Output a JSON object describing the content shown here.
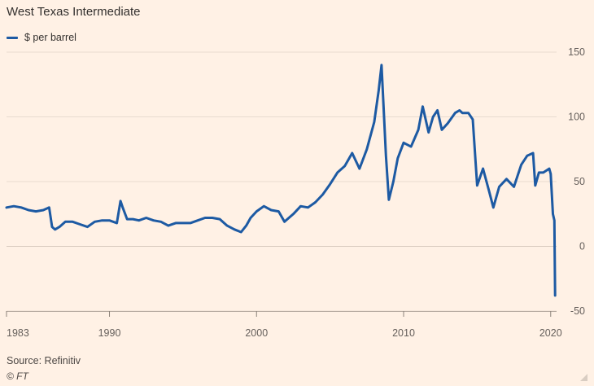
{
  "title": "West Texas Intermediate",
  "source": "Source: Refinitiv",
  "copyright": "© FT",
  "chart_data": {
    "type": "line",
    "title": "West Texas Intermediate",
    "xlabel": "",
    "ylabel": "",
    "xlim": [
      1983,
      2020.4
    ],
    "ylim": [
      -50,
      150
    ],
    "x_ticks": [
      1983,
      1990,
      2000,
      2010,
      2020
    ],
    "y_ticks": [
      -50,
      0,
      50,
      100,
      150
    ],
    "grid": "horizontal",
    "legend_position": "top-left",
    "line_color": "#1d5aa3",
    "series": [
      {
        "name": "$ per barrel",
        "x": [
          1983.0,
          1983.5,
          1984.0,
          1984.5,
          1985.0,
          1985.5,
          1985.9,
          1986.1,
          1986.3,
          1986.6,
          1987.0,
          1987.5,
          1988.0,
          1988.5,
          1989.0,
          1989.5,
          1990.0,
          1990.5,
          1990.75,
          1990.9,
          1991.2,
          1991.6,
          1992.0,
          1992.5,
          1993.0,
          1993.5,
          1994.0,
          1994.5,
          1995.0,
          1995.5,
          1996.0,
          1996.5,
          1997.0,
          1997.5,
          1998.0,
          1998.5,
          1998.95,
          1999.3,
          1999.6,
          2000.0,
          2000.5,
          2001.0,
          2001.5,
          2001.9,
          2002.5,
          2003.0,
          2003.5,
          2004.0,
          2004.5,
          2005.0,
          2005.5,
          2006.0,
          2006.5,
          2007.0,
          2007.5,
          2008.0,
          2008.3,
          2008.5,
          2008.8,
          2009.0,
          2009.3,
          2009.6,
          2010.0,
          2010.5,
          2011.0,
          2011.3,
          2011.7,
          2012.0,
          2012.3,
          2012.6,
          2013.0,
          2013.5,
          2013.8,
          2014.0,
          2014.4,
          2014.7,
          2015.0,
          2015.4,
          2015.8,
          2016.1,
          2016.5,
          2017.0,
          2017.5,
          2018.0,
          2018.4,
          2018.8,
          2018.95,
          2019.2,
          2019.5,
          2019.9,
          2020.0,
          2020.15,
          2020.25,
          2020.3
        ],
        "values": [
          30,
          31,
          30,
          28,
          27,
          28,
          30,
          15,
          13,
          15,
          19,
          19,
          17,
          15,
          19,
          20,
          20,
          18,
          35,
          30,
          21,
          21,
          20,
          22,
          20,
          19,
          16,
          18,
          18,
          18,
          20,
          22,
          22,
          21,
          16,
          13,
          11,
          16,
          22,
          27,
          31,
          28,
          27,
          19,
          25,
          31,
          30,
          34,
          40,
          48,
          57,
          62,
          72,
          60,
          75,
          96,
          120,
          140,
          70,
          36,
          50,
          68,
          80,
          77,
          90,
          108,
          88,
          100,
          105,
          90,
          95,
          103,
          105,
          103,
          103,
          98,
          47,
          60,
          43,
          30,
          46,
          52,
          46,
          63,
          70,
          72,
          47,
          57,
          57,
          60,
          56,
          25,
          20,
          -38
        ]
      }
    ]
  }
}
